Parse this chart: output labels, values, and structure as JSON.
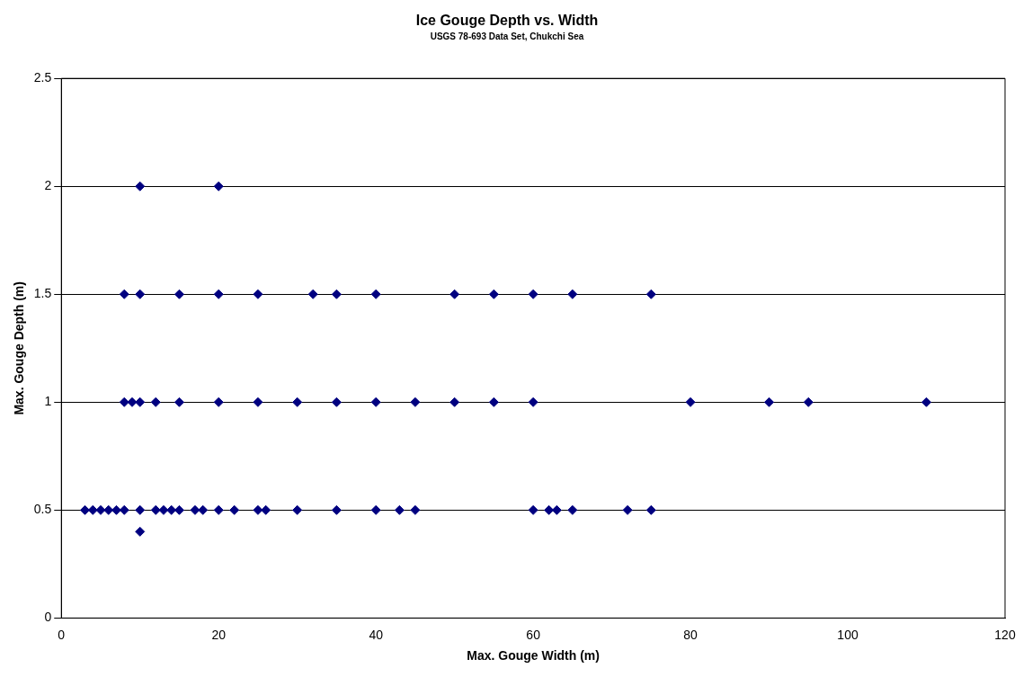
{
  "chart_data": {
    "type": "scatter",
    "title": "Ice Gouge Depth vs. Width",
    "subtitle": "USGS 78-693 Data Set, Chukchi Sea",
    "xlabel": "Max. Gouge Width (m)",
    "ylabel": "Max. Gouge Depth (m)",
    "x": [
      3,
      4,
      5,
      6,
      7,
      8,
      10,
      12,
      13,
      14,
      15,
      17,
      18,
      20,
      22,
      25,
      26,
      30,
      35,
      40,
      43,
      45,
      60,
      62,
      63,
      65,
      72,
      75,
      10,
      8,
      9,
      10,
      12,
      15,
      20,
      25,
      30,
      35,
      40,
      45,
      50,
      55,
      60,
      80,
      90,
      95,
      110,
      8,
      10,
      15,
      20,
      25,
      32,
      35,
      40,
      50,
      55,
      60,
      65,
      75,
      10,
      20
    ],
    "values": [
      0.5,
      0.5,
      0.5,
      0.5,
      0.5,
      0.5,
      0.5,
      0.5,
      0.5,
      0.5,
      0.5,
      0.5,
      0.5,
      0.5,
      0.5,
      0.5,
      0.5,
      0.5,
      0.5,
      0.5,
      0.5,
      0.5,
      0.5,
      0.5,
      0.5,
      0.5,
      0.5,
      0.5,
      0.4,
      1,
      1,
      1,
      1,
      1,
      1,
      1,
      1,
      1,
      1,
      1,
      1,
      1,
      1,
      1,
      1,
      1,
      1,
      1.5,
      1.5,
      1.5,
      1.5,
      1.5,
      1.5,
      1.5,
      1.5,
      1.5,
      1.5,
      1.5,
      1.5,
      1.5,
      2,
      2
    ],
    "color": "#000080",
    "marker": "diamond",
    "xlim": [
      0,
      120
    ],
    "xticks": [
      0,
      20,
      40,
      60,
      80,
      100,
      120
    ],
    "ylim": [
      0,
      2.5
    ],
    "yticks": [
      0,
      0.5,
      1,
      1.5,
      2,
      2.5
    ],
    "grid": "y",
    "legend": false
  }
}
